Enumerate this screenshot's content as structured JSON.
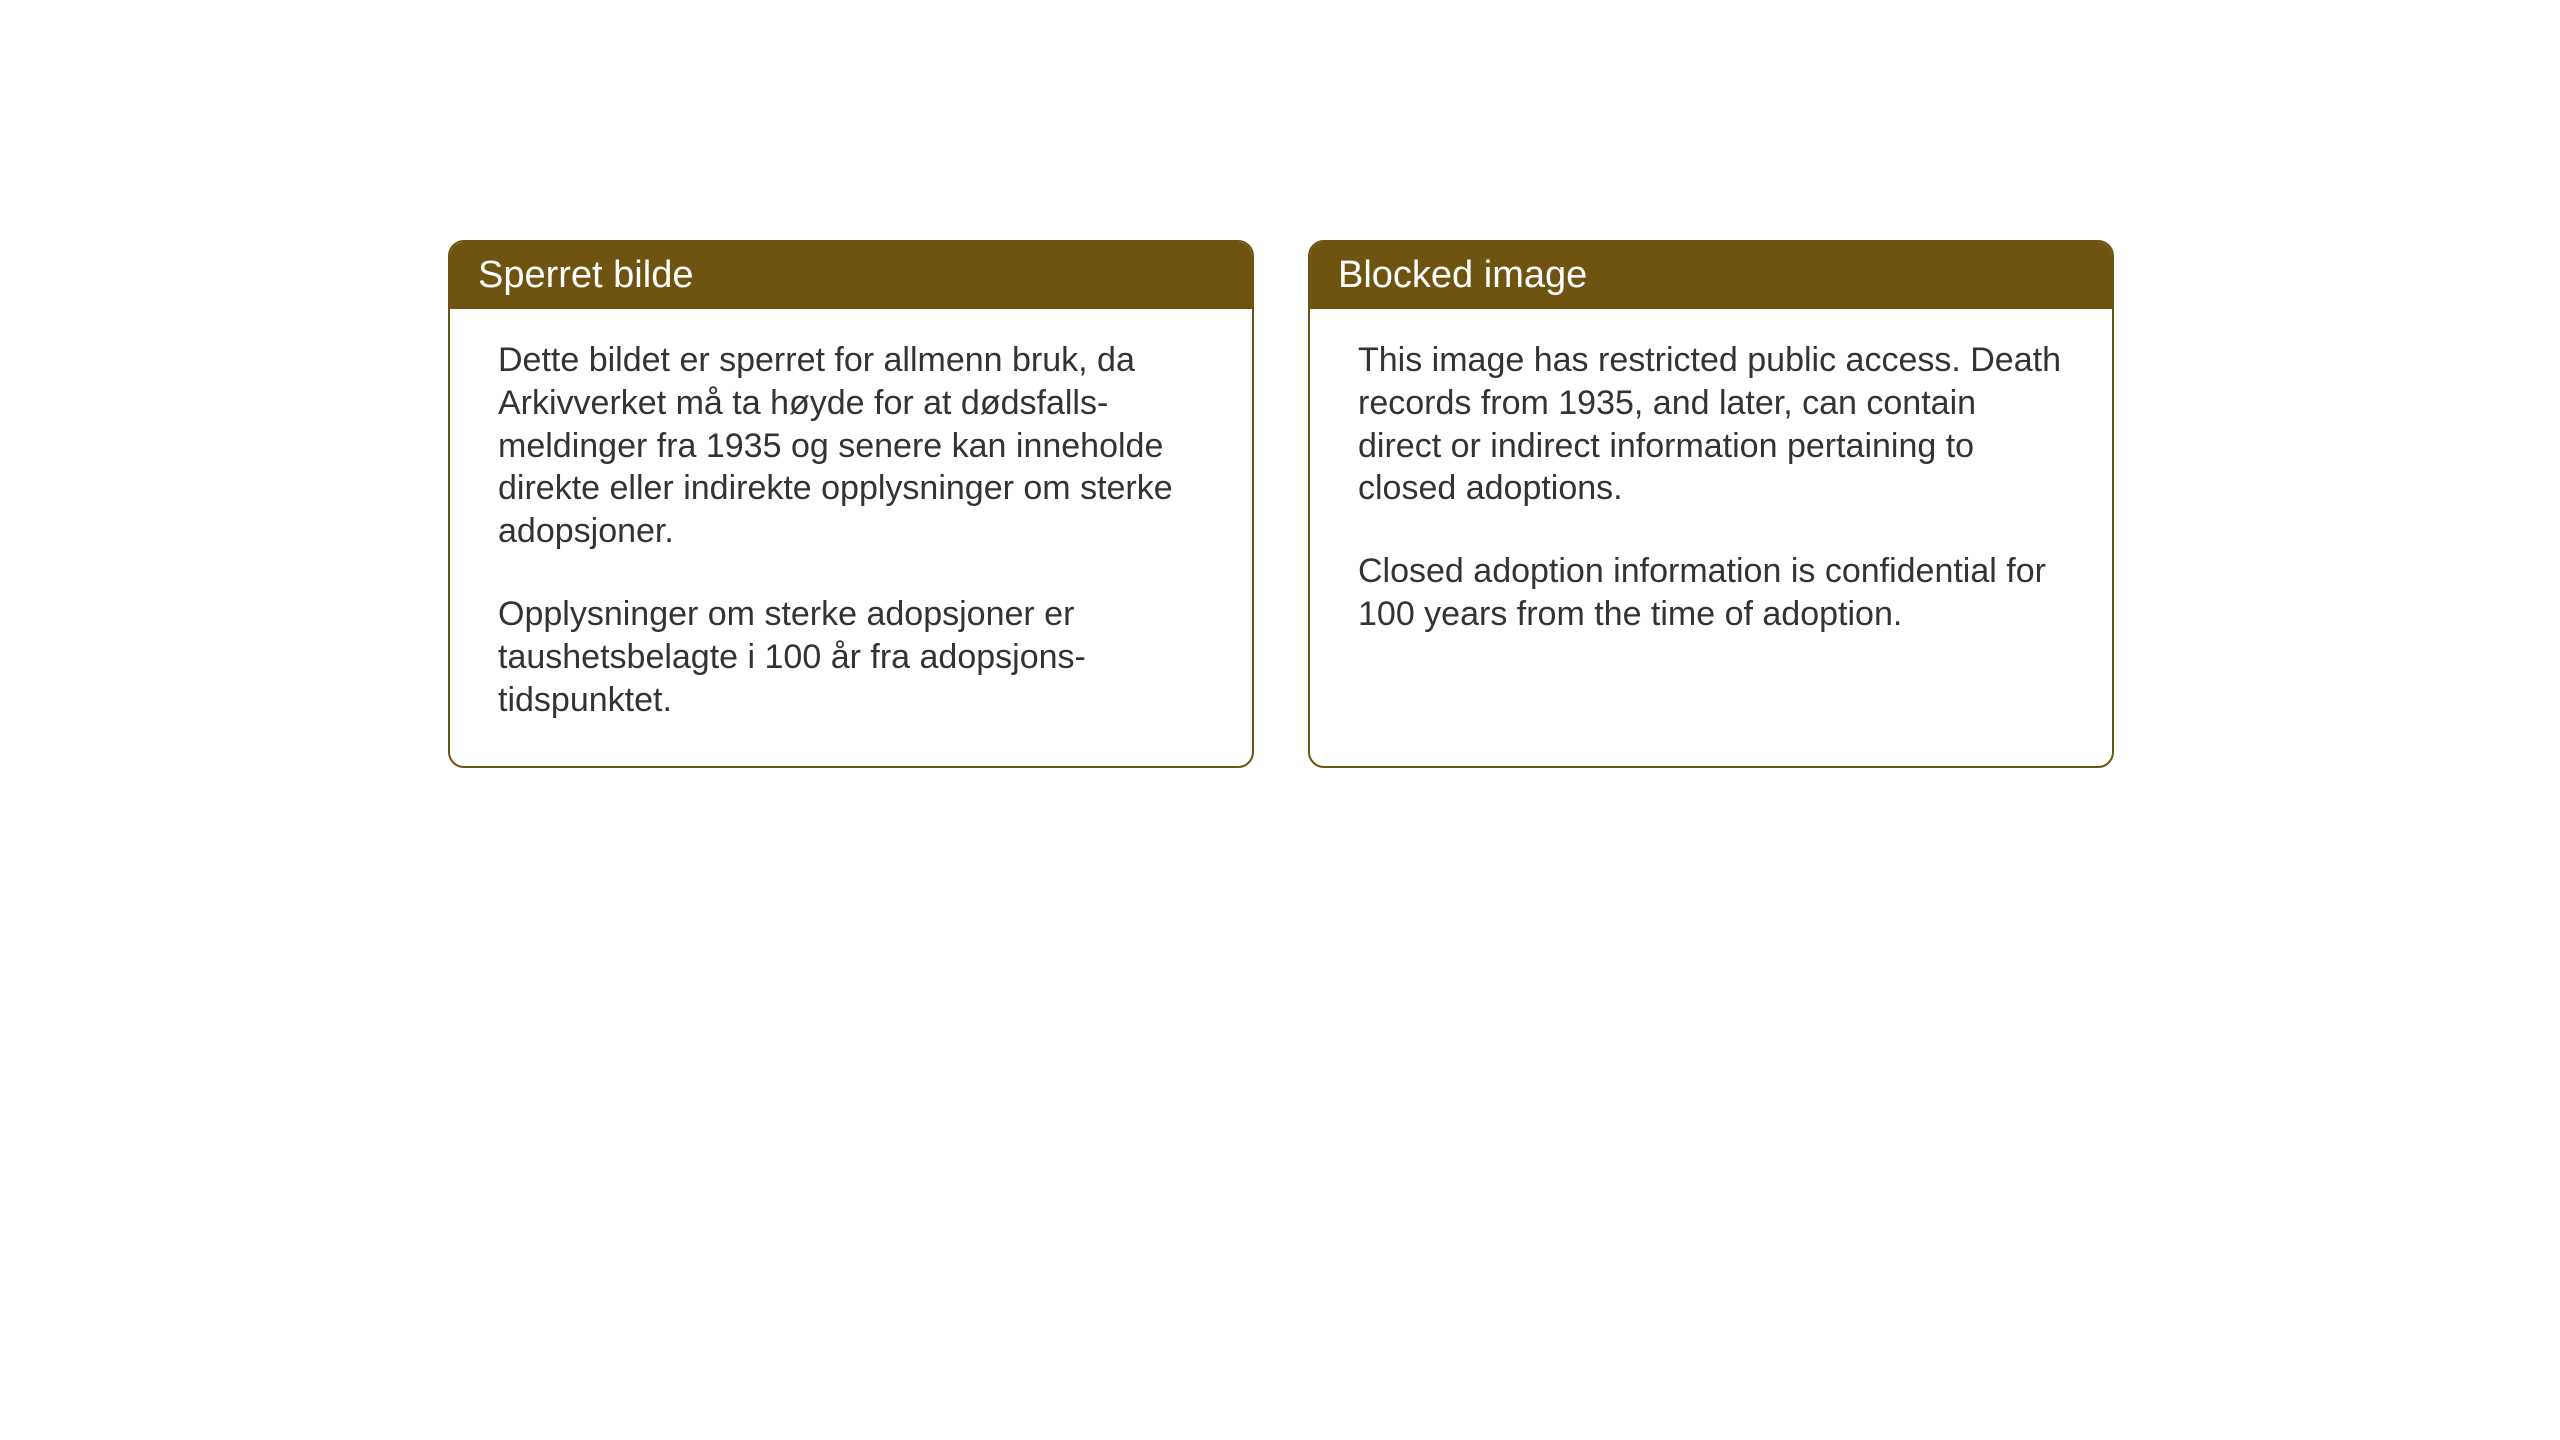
{
  "cards": {
    "norwegian": {
      "title": "Sperret bilde",
      "paragraph1": "Dette bildet er sperret for allmenn bruk, da Arkivverket må ta høyde for at dødsfalls-meldinger fra 1935 og senere kan inneholde direkte eller indirekte opplysninger om sterke adopsjoner.",
      "paragraph2": "Opplysninger om sterke adopsjoner er taushetsbelagte i 100 år fra adopsjons-tidspunktet."
    },
    "english": {
      "title": "Blocked image",
      "paragraph1": "This image has restricted public access. Death records from 1935, and later, can contain direct or indirect information pertaining to closed adoptions.",
      "paragraph2": "Closed adoption information is confidential for 100 years from the time of adoption."
    }
  },
  "styling": {
    "header_background": "#6e5311",
    "header_text_color": "#ffffff",
    "border_color": "#6e5311",
    "body_text_color": "#333333",
    "card_background": "#ffffff",
    "page_background": "#ffffff",
    "border_radius": 16,
    "header_fontsize": 38,
    "body_fontsize": 34
  }
}
